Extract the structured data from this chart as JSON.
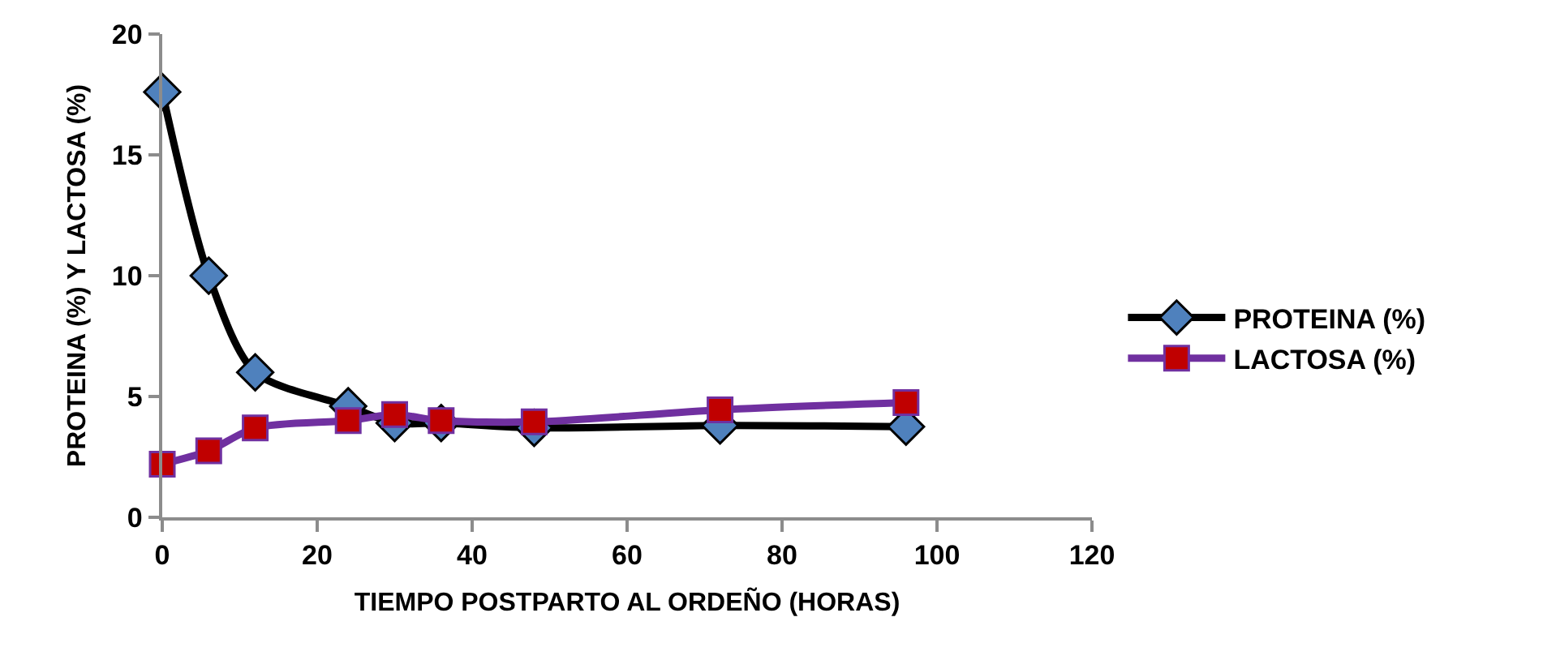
{
  "chart_data": {
    "type": "line",
    "xlabel": "TIEMPO POSTPARTO AL ORDEÑO (HORAS)",
    "ylabel": "PROTEINA (%) Y LACTOSA (%)",
    "x": [
      0,
      6,
      12,
      24,
      30,
      36,
      48,
      72,
      96
    ],
    "series": [
      {
        "name": "PROTEINA (%)",
        "color": "#000000",
        "marker": "diamond",
        "values": [
          17.6,
          10.0,
          6.0,
          4.6,
          3.9,
          3.9,
          3.7,
          3.8,
          3.75
        ]
      },
      {
        "name": "LACTOSA (%)",
        "color": "#7030a0",
        "marker": "square",
        "values": [
          2.2,
          2.75,
          3.7,
          4.0,
          4.25,
          4.0,
          3.95,
          4.45,
          4.75
        ]
      }
    ],
    "xlim": [
      0,
      120
    ],
    "xticks": [
      0,
      20,
      40,
      60,
      80,
      100,
      120
    ],
    "ylim": [
      0,
      20
    ],
    "yticks": [
      0,
      5,
      10,
      15,
      20
    ],
    "grid": false,
    "legend": "right",
    "line_style": "solid"
  }
}
